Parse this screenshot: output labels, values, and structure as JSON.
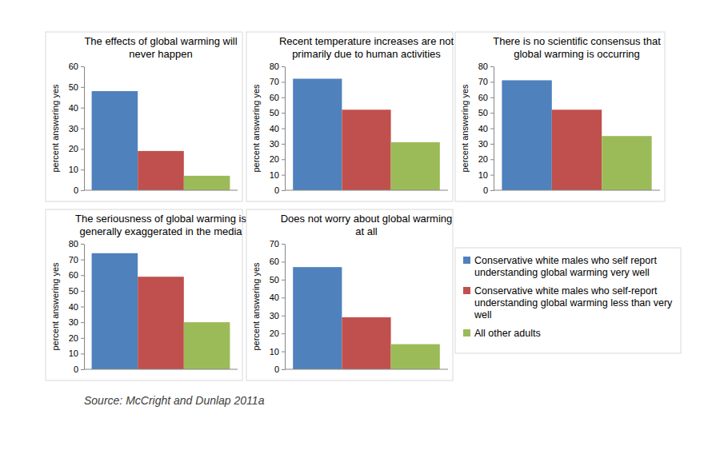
{
  "chart_data": [
    {
      "type": "bar",
      "title": "The effects of global warming will never happen",
      "y_label": "percent answering yes",
      "categories": [
        null
      ],
      "series": [
        {
          "color": "#4f81bd",
          "values": [
            48
          ]
        },
        {
          "color": "#c0504d",
          "values": [
            19
          ]
        },
        {
          "color": "#9bbb59",
          "values": [
            7
          ]
        }
      ],
      "ylim": [
        0,
        60
      ],
      "yticks": [
        0,
        10,
        20,
        30,
        40,
        50,
        60
      ]
    },
    {
      "type": "bar",
      "title": "Recent temperature increases are not primarily due to human activities",
      "y_label": "percent answering yes",
      "categories": [
        null
      ],
      "series": [
        {
          "color": "#4f81bd",
          "values": [
            72
          ]
        },
        {
          "color": "#c0504d",
          "values": [
            52
          ]
        },
        {
          "color": "#9bbb59",
          "values": [
            31
          ]
        }
      ],
      "ylim": [
        0,
        80
      ],
      "yticks": [
        0,
        10,
        20,
        30,
        40,
        50,
        60,
        70,
        80
      ]
    },
    {
      "type": "bar",
      "title": "There is no scientific consensus that global warming is occurring",
      "y_label": "percent answering yes",
      "categories": [
        null
      ],
      "series": [
        {
          "color": "#4f81bd",
          "values": [
            71
          ]
        },
        {
          "color": "#c0504d",
          "values": [
            52
          ]
        },
        {
          "color": "#9bbb59",
          "values": [
            35
          ]
        }
      ],
      "ylim": [
        0,
        80
      ],
      "yticks": [
        0,
        10,
        20,
        30,
        40,
        50,
        60,
        70,
        80
      ]
    },
    {
      "type": "bar",
      "title": "The seriousness of global warming is generally exaggerated in the media",
      "y_label": "percent answering yes",
      "categories": [
        null
      ],
      "series": [
        {
          "color": "#4f81bd",
          "values": [
            74
          ]
        },
        {
          "color": "#c0504d",
          "values": [
            59
          ]
        },
        {
          "color": "#9bbb59",
          "values": [
            30
          ]
        }
      ],
      "ylim": [
        0,
        80
      ],
      "yticks": [
        0,
        10,
        20,
        30,
        40,
        50,
        60,
        70,
        80
      ]
    },
    {
      "type": "bar",
      "title": "Does not worry about global warming at all",
      "y_label": "percent answering yes",
      "categories": [
        null
      ],
      "series": [
        {
          "name": "Conservative white males who self report understanding global warming very well",
          "color": "#4f81bd",
          "values": [
            57
          ]
        },
        {
          "name": "Conservative white males who self-report understanding global warming less than very well",
          "color": "#c0504d",
          "values": [
            29
          ]
        },
        {
          "name": "All other adults",
          "color": "#9bbb59",
          "values": [
            14
          ]
        }
      ],
      "ylim": [
        0,
        70
      ],
      "yticks": [
        0,
        10,
        20,
        30,
        40,
        50,
        60,
        70
      ],
      "legend": "right"
    }
  ],
  "source": "Source: McCright and Dunlap 2011a"
}
